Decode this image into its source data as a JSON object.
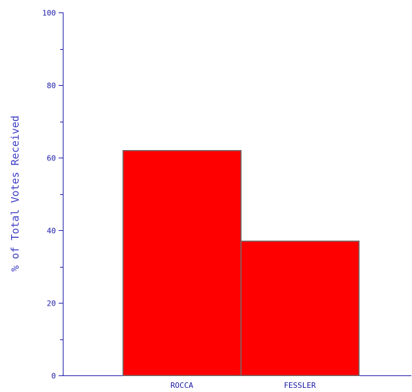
{
  "chart_data": {
    "type": "bar",
    "title": "",
    "xlabel": "",
    "ylabel": "% of Total Votes Received",
    "categories": [
      "ROCCA",
      "FESSLER"
    ],
    "values": [
      62,
      37
    ],
    "ylim": [
      0,
      100
    ],
    "yticks": [
      "0",
      "20",
      "40",
      "60",
      "80",
      "100"
    ],
    "grid": false,
    "legend": "none",
    "colors": {
      "bar": "#ff0000",
      "bar_outline": "#6e6e6e",
      "axis": "#1a1aa8",
      "ylabel": "#3d3dc4"
    }
  }
}
